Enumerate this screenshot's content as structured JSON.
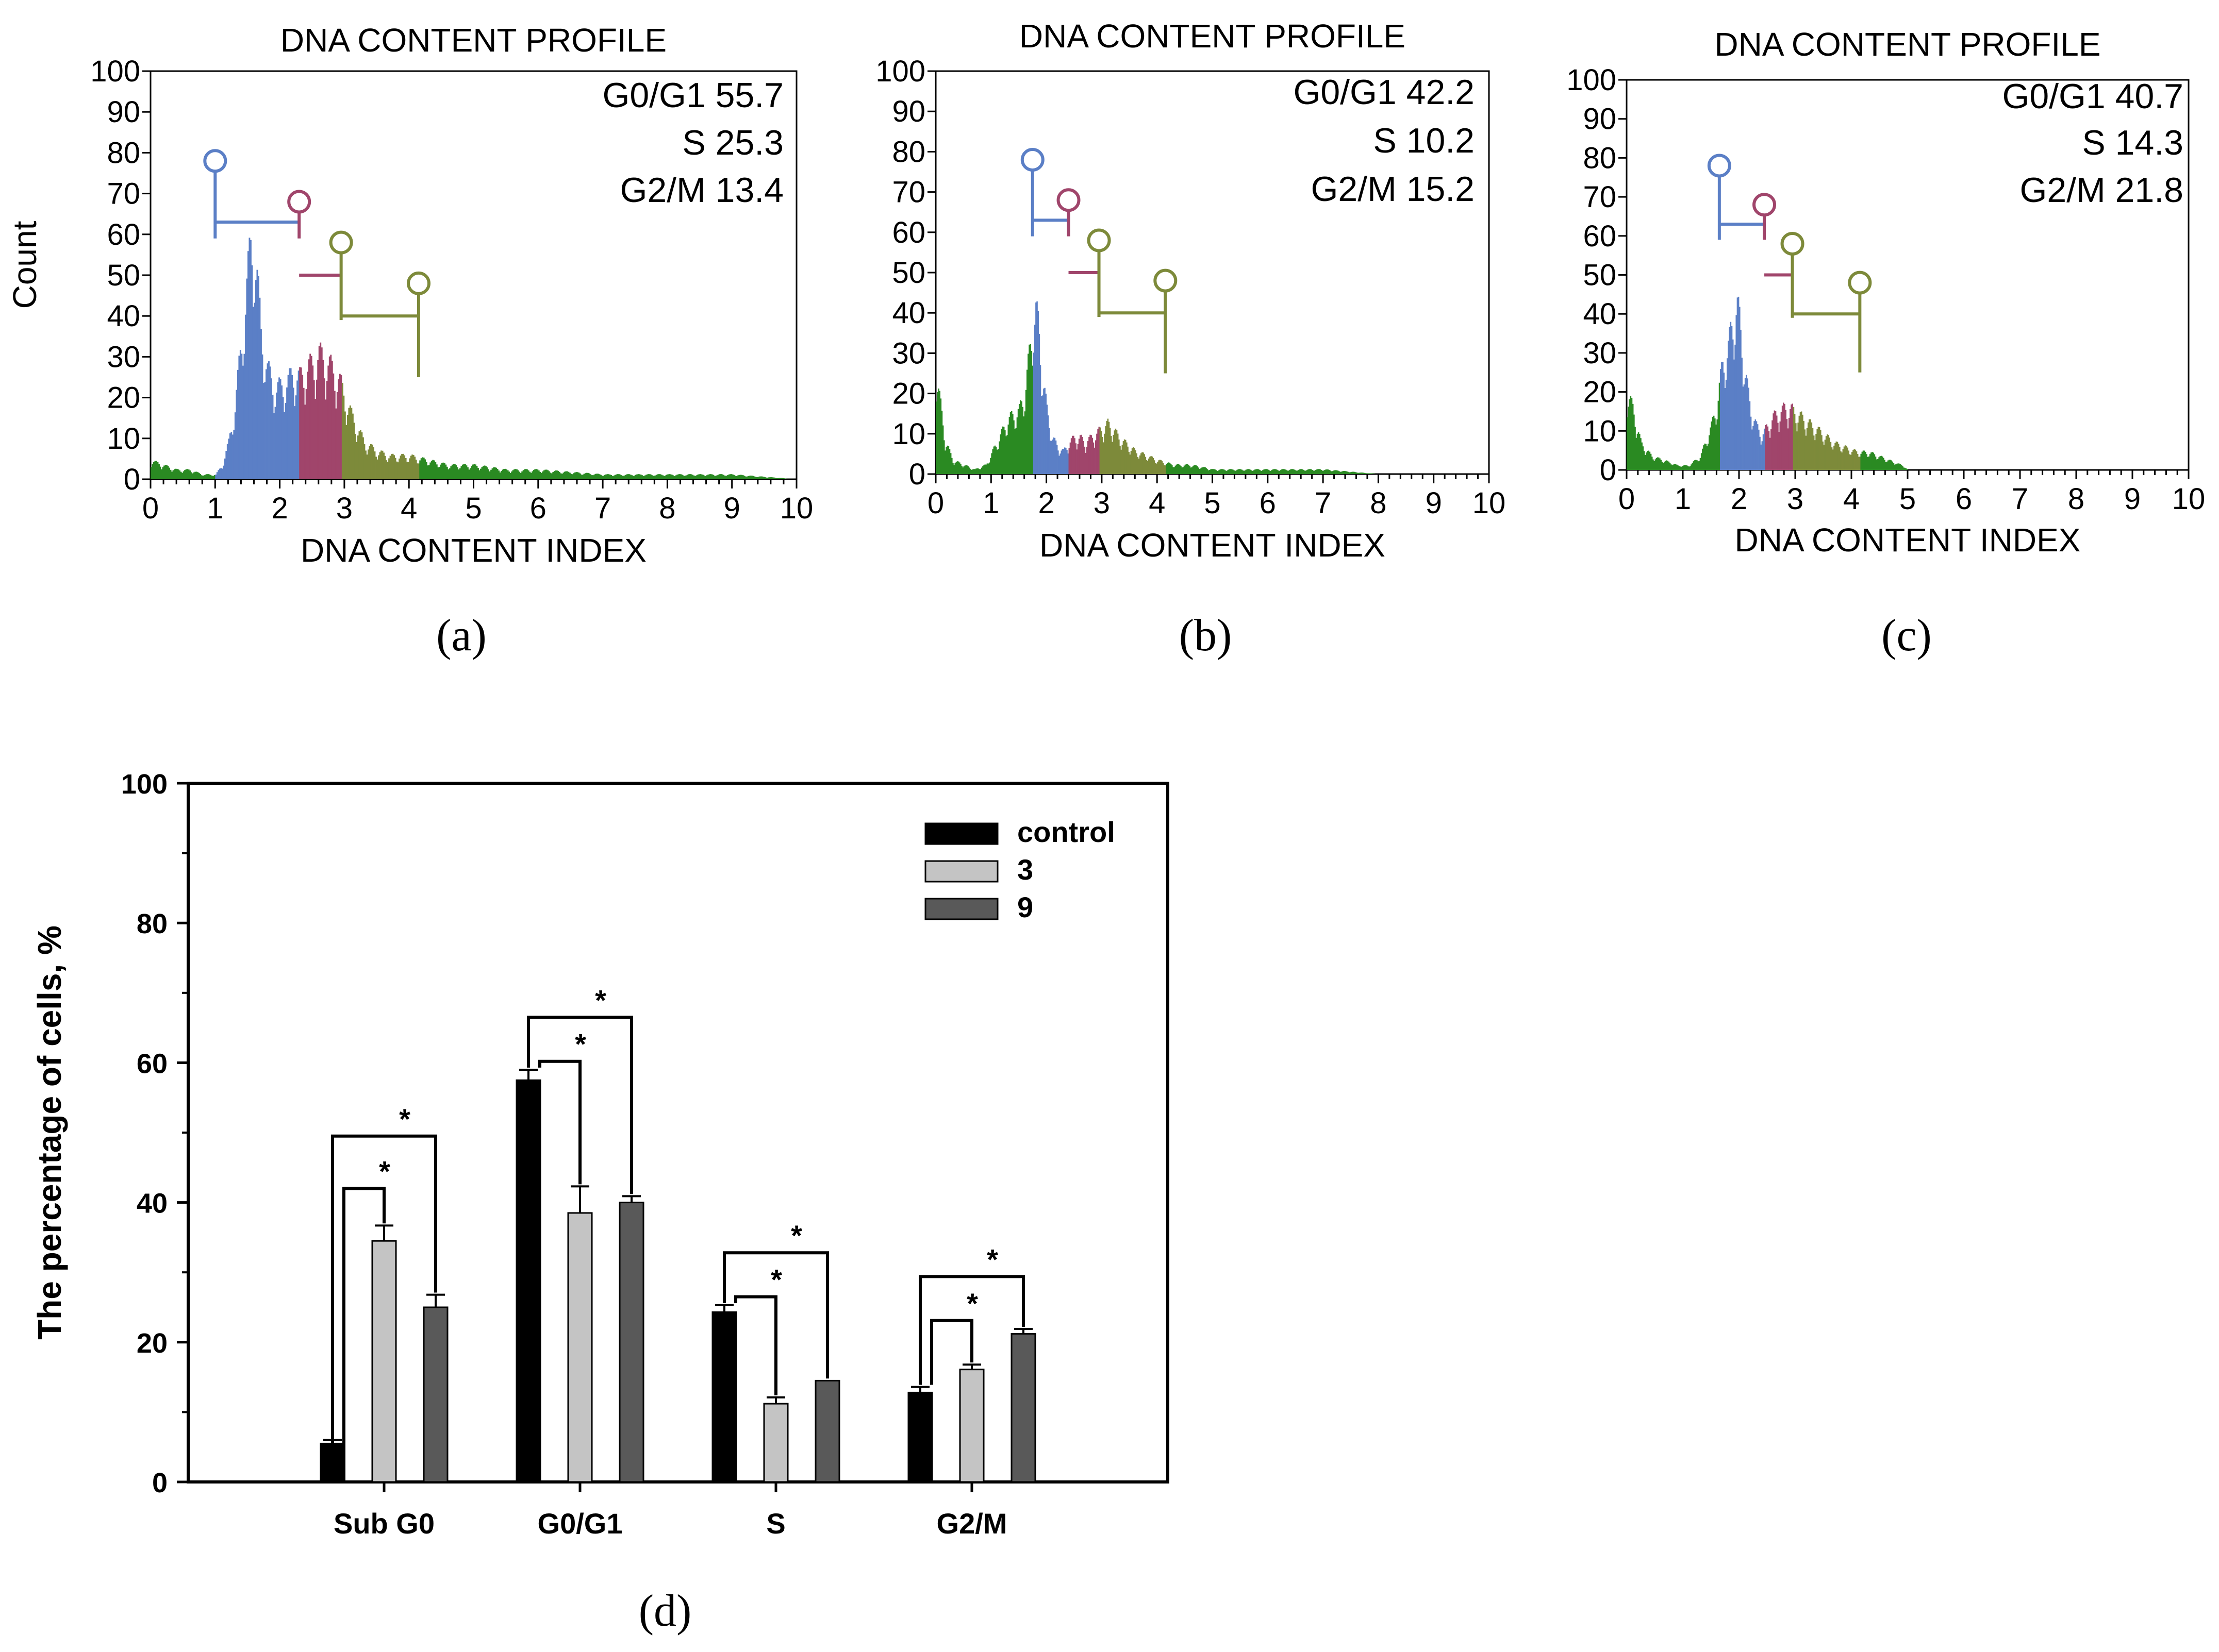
{
  "panels": [
    {
      "label": "(a)",
      "title": "DNA CONTENT PROFILE",
      "xlabel": "DNA CONTENT INDEX",
      "ylabel": "Count",
      "stats": [
        "G0/G1 55.7",
        "S 25.3",
        "G2/M 13.4"
      ],
      "markers": [
        1.0,
        2.3,
        2.95,
        4.15
      ]
    },
    {
      "label": "(b)",
      "title": "DNA CONTENT PROFILE",
      "xlabel": "DNA CONTENT INDEX",
      "ylabel": "",
      "stats": [
        "G0/G1 42.2",
        "S 10.2",
        "G2/M 15.2"
      ],
      "markers": [
        1.75,
        2.4,
        2.95,
        4.15
      ]
    },
    {
      "label": "(c)",
      "title": "DNA CONTENT PROFILE",
      "xlabel": "DNA CONTENT INDEX",
      "ylabel": "",
      "stats": [
        "G0/G1 40.7",
        "S 14.3",
        "G2/M 21.8"
      ],
      "markers": [
        1.65,
        2.45,
        2.95,
        4.15
      ]
    }
  ],
  "phase_colors": {
    "G0/G1": "#5b7fc6",
    "S": "#a0456b",
    "G2/M": "#7d8a3a",
    "other": "#2a8a22"
  },
  "chart_data": [
    {
      "type": "area",
      "panel": "(a)",
      "title": "DNA CONTENT PROFILE",
      "xlabel": "DNA CONTENT INDEX",
      "ylabel": "Count",
      "xlim": [
        0,
        10
      ],
      "ylim": [
        0,
        100
      ],
      "x_ticks": [
        0,
        1,
        2,
        3,
        4,
        5,
        6,
        7,
        8,
        9,
        10
      ],
      "y_ticks": [
        0,
        10,
        20,
        30,
        40,
        50,
        60,
        70,
        80,
        90,
        100
      ],
      "x": [
        0,
        0.2,
        0.4,
        0.6,
        0.8,
        1.0,
        1.1,
        1.2,
        1.3,
        1.4,
        1.5,
        1.55,
        1.6,
        1.65,
        1.7,
        1.8,
        1.9,
        2.0,
        2.1,
        2.2,
        2.3,
        2.4,
        2.5,
        2.6,
        2.7,
        2.8,
        2.9,
        3.0,
        3.1,
        3.2,
        3.3,
        3.5,
        3.7,
        4.0,
        4.3,
        4.6,
        5.0,
        5.5,
        6.0,
        7.0,
        8.0,
        9.0,
        10.0
      ],
      "y": [
        4,
        3,
        2,
        2,
        1,
        1,
        3,
        8,
        16,
        30,
        45,
        52,
        50,
        42,
        32,
        24,
        20,
        20,
        21,
        23,
        22,
        24,
        25,
        27,
        26,
        24,
        22,
        18,
        14,
        11,
        8,
        6,
        5,
        5,
        4,
        3,
        3,
        2,
        2,
        1,
        1,
        1,
        0
      ]
    },
    {
      "type": "area",
      "panel": "(b)",
      "title": "DNA CONTENT PROFILE",
      "xlabel": "DNA CONTENT INDEX",
      "ylabel": "",
      "xlim": [
        0,
        10
      ],
      "ylim": [
        0,
        100
      ],
      "x_ticks": [
        0,
        1,
        2,
        3,
        4,
        5,
        6,
        7,
        8,
        9,
        10
      ],
      "y_ticks": [
        0,
        10,
        20,
        30,
        40,
        50,
        60,
        70,
        80,
        90,
        100
      ],
      "x": [
        0,
        0.05,
        0.15,
        0.3,
        0.5,
        0.7,
        0.9,
        1.1,
        1.3,
        1.5,
        1.6,
        1.7,
        1.75,
        1.8,
        1.85,
        1.9,
        2.0,
        2.1,
        2.2,
        2.3,
        2.4,
        2.5,
        2.6,
        2.7,
        2.8,
        2.9,
        3.0,
        3.1,
        3.2,
        3.3,
        3.4,
        3.6,
        3.8,
        4.0,
        4.3,
        4.6,
        5.0,
        5.5,
        6.0,
        7.0,
        8.0,
        10.0
      ],
      "y": [
        24,
        18,
        8,
        3,
        2,
        1,
        2,
        7,
        12,
        14,
        18,
        28,
        34,
        36,
        32,
        24,
        14,
        8,
        6,
        5,
        7,
        8,
        8,
        7,
        8,
        9,
        10,
        11,
        10,
        8,
        7,
        5,
        4,
        3,
        2,
        2,
        1,
        1,
        1,
        1,
        0,
        0
      ]
    },
    {
      "type": "area",
      "panel": "(c)",
      "title": "DNA CONTENT PROFILE",
      "xlabel": "DNA CONTENT INDEX",
      "ylabel": "",
      "xlim": [
        0,
        10
      ],
      "ylim": [
        0,
        100
      ],
      "x_ticks": [
        0,
        1,
        2,
        3,
        4,
        5,
        6,
        7,
        8,
        9,
        10
      ],
      "y_ticks": [
        0,
        10,
        20,
        30,
        40,
        50,
        60,
        70,
        80,
        90,
        100
      ],
      "x": [
        0,
        0.1,
        0.25,
        0.45,
        0.7,
        0.9,
        1.1,
        1.3,
        1.5,
        1.6,
        1.65,
        1.7,
        1.8,
        1.9,
        1.95,
        2.0,
        2.1,
        2.2,
        2.3,
        2.4,
        2.5,
        2.6,
        2.7,
        2.8,
        2.9,
        3.0,
        3.1,
        3.2,
        3.3,
        3.5,
        3.7,
        3.9,
        4.1,
        4.3,
        4.5,
        4.7,
        4.9,
        5.0,
        6.0,
        8.0,
        10.0
      ],
      "y": [
        18,
        14,
        6,
        3,
        2,
        1,
        1,
        3,
        10,
        15,
        20,
        24,
        28,
        35,
        38,
        34,
        22,
        14,
        10,
        8,
        10,
        12,
        13,
        14,
        14,
        13,
        12,
        11,
        10,
        8,
        6,
        5,
        4,
        4,
        3,
        2,
        1,
        0,
        0,
        0,
        0
      ]
    },
    {
      "type": "bar",
      "panel": "(d)",
      "title": "",
      "xlabel": "",
      "ylabel": "The percentage of cells, %",
      "ylim": [
        0,
        100
      ],
      "y_ticks": [
        0,
        20,
        40,
        60,
        80,
        100
      ],
      "categories": [
        "Sub G0",
        "G0/G1",
        "S",
        "G2/M"
      ],
      "series": [
        {
          "name": "control",
          "color": "#000000",
          "values": [
            5.5,
            57.5,
            24.3,
            12.8
          ],
          "errors": [
            0.5,
            1.5,
            1.0,
            0.8
          ]
        },
        {
          "name": "3",
          "color": "#c4c4c4",
          "values": [
            34.5,
            38.5,
            11.2,
            16.1
          ],
          "errors": [
            2.2,
            3.8,
            0.9,
            0.7
          ]
        },
        {
          "name": "9",
          "color": "#595959",
          "values": [
            25.0,
            40.0,
            14.5,
            21.2
          ],
          "errors": [
            1.8,
            0.9,
            0.0,
            0.7
          ]
        }
      ],
      "significance_marker": "*",
      "legend_position": "top-right",
      "label": "(d)"
    }
  ]
}
